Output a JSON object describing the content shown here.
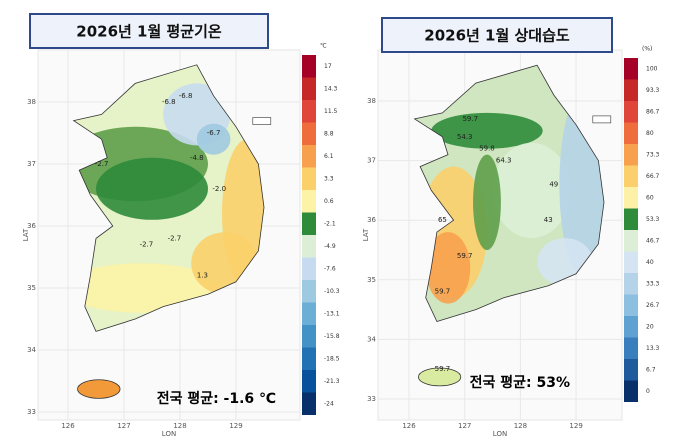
{
  "panels": [
    {
      "title": "2026년 1월 평균기온",
      "unit": "℃",
      "summary": "전국 평균: -1.6 ℃",
      "axis_x": "LON",
      "axis_y": "LAT",
      "xticks": [
        "126",
        "127",
        "128",
        "129"
      ],
      "yticks": [
        "38",
        "37",
        "36",
        "35",
        "34",
        "33"
      ],
      "legend": [
        {
          "label": "17",
          "color": "#a50026"
        },
        {
          "label": "14.3",
          "color": "#c62828"
        },
        {
          "label": "11.5",
          "color": "#e0453a"
        },
        {
          "label": "8.8",
          "color": "#ef6c3c"
        },
        {
          "label": "6.1",
          "color": "#f7a14e"
        },
        {
          "label": "3.3",
          "color": "#fbd06b"
        },
        {
          "label": "0.6",
          "color": "#fcf3a6"
        },
        {
          "label": "-2.1",
          "color": "#2e8b3a"
        },
        {
          "label": "-4.9",
          "color": "#dcefd6"
        },
        {
          "label": "-7.6",
          "color": "#c6dbef"
        },
        {
          "label": "-10.3",
          "color": "#9ecae1"
        },
        {
          "label": "-13.1",
          "color": "#6baed6"
        },
        {
          "label": "-15.8",
          "color": "#4292c6"
        },
        {
          "label": "-18.5",
          "color": "#2171b5"
        },
        {
          "label": "-21.3",
          "color": "#08519c"
        },
        {
          "label": "-24",
          "color": "#08306b"
        }
      ],
      "contour_labels": [
        "-6.8",
        "-6.8",
        "-6.7",
        "-4.8",
        "-2.7",
        "-2.0",
        "-2.7",
        "-2.7",
        "1.3"
      ]
    },
    {
      "title": "2026년 1월 상대습도",
      "unit": "(%)",
      "summary": "전국 평균: 53%",
      "axis_x": "LON",
      "axis_y": "LAT",
      "xticks": [
        "126",
        "127",
        "128",
        "129"
      ],
      "yticks": [
        "38",
        "37",
        "36",
        "35",
        "34",
        "33"
      ],
      "legend": [
        {
          "label": "100",
          "color": "#a50026"
        },
        {
          "label": "93.3",
          "color": "#c62828"
        },
        {
          "label": "86.7",
          "color": "#e0453a"
        },
        {
          "label": "80",
          "color": "#ef6c3c"
        },
        {
          "label": "73.3",
          "color": "#f7a14e"
        },
        {
          "label": "66.7",
          "color": "#fbcf6b"
        },
        {
          "label": "60",
          "color": "#fdf1a8"
        },
        {
          "label": "53.3",
          "color": "#2e8b3a"
        },
        {
          "label": "46.7",
          "color": "#dcefd6"
        },
        {
          "label": "40",
          "color": "#d4e4f2"
        },
        {
          "label": "33.3",
          "color": "#b5d3e8"
        },
        {
          "label": "26.7",
          "color": "#8dbfe0"
        },
        {
          "label": "20",
          "color": "#5fa2d2"
        },
        {
          "label": "13.3",
          "color": "#3a7fbd"
        },
        {
          "label": "6.7",
          "color": "#1f5a9c"
        },
        {
          "label": "0",
          "color": "#08306b"
        }
      ],
      "contour_labels": [
        "59.7",
        "54.3",
        "59.8",
        "64.3",
        "49",
        "43",
        "65",
        "59.7",
        "59.7",
        "59.7"
      ]
    }
  ]
}
